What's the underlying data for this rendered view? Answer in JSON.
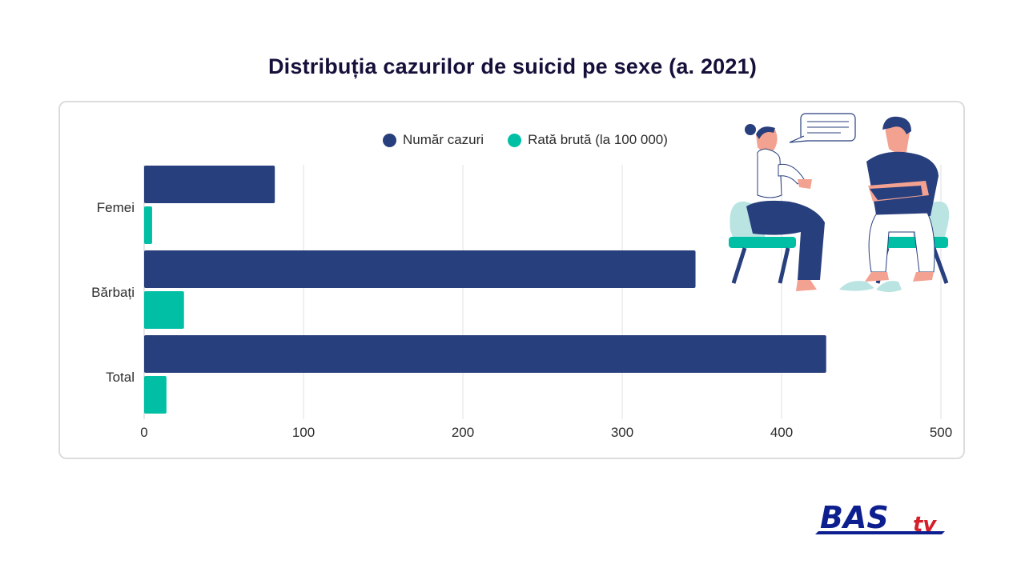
{
  "title": "Distribuția cazurilor de suicid pe sexe (a. 2021)",
  "chart_data": {
    "type": "bar",
    "orientation": "horizontal",
    "categories": [
      "Femei",
      "Bărbați",
      "Total"
    ],
    "series": [
      {
        "name": "Număr cazuri",
        "color": "#283f7d",
        "values": [
          82,
          346,
          428
        ]
      },
      {
        "name": "Rată brută (la 100 000)",
        "color": "#00bfa5",
        "values": [
          5,
          25,
          14
        ]
      }
    ],
    "xlim": [
      0,
      500
    ],
    "xticks": [
      "0",
      "100",
      "200",
      "300",
      "400",
      "500"
    ],
    "grid": true,
    "legend_position": "top"
  },
  "logo": {
    "main": "BAS",
    "suffix": "tv",
    "main_color": "#0d1f8f",
    "suffix_color": "#d4202a"
  },
  "illustration": {
    "icon": "counseling-session-illustration"
  }
}
